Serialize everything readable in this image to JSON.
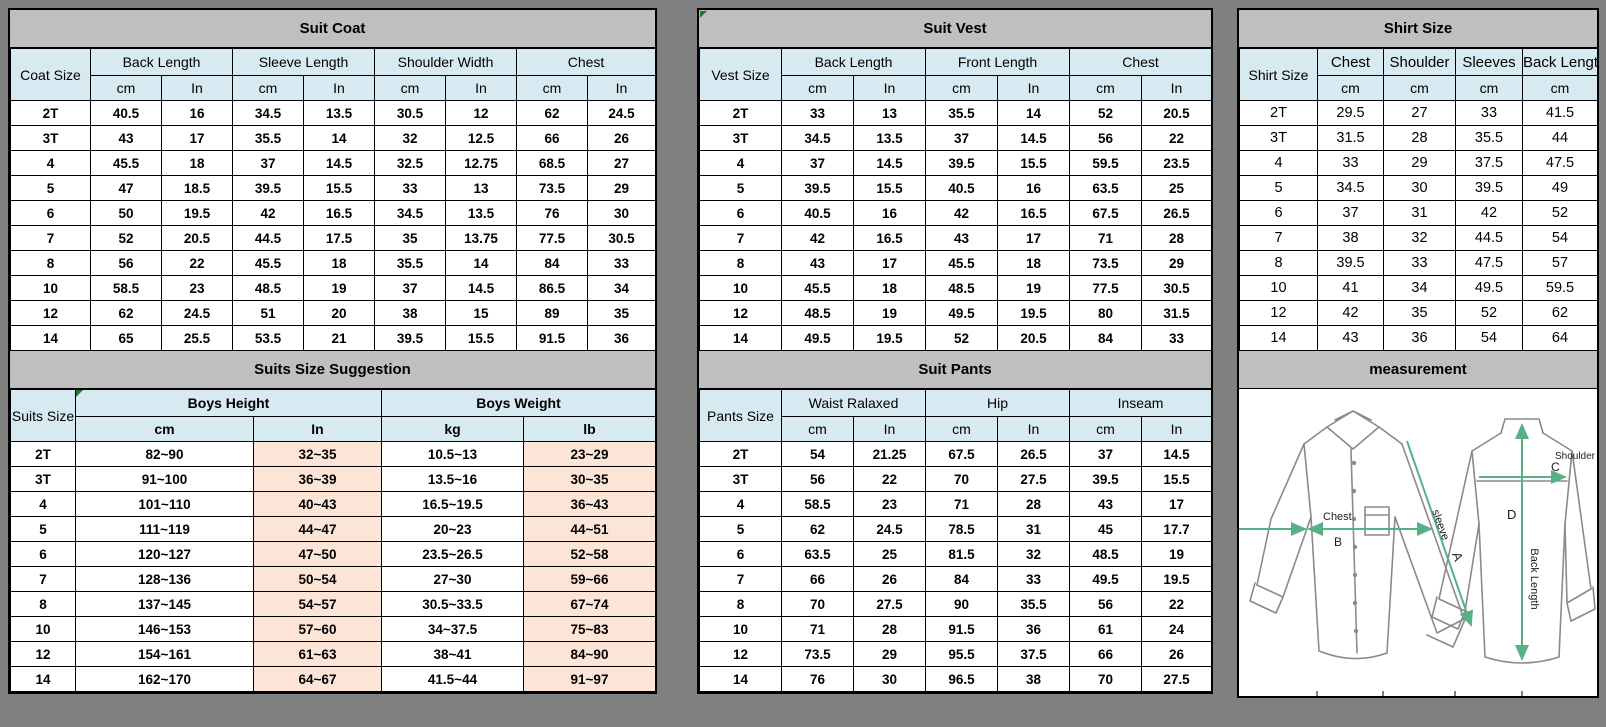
{
  "colors": {
    "page_bg": "#808080",
    "title_bg": "#BFBFBF",
    "header_bg": "#D8EAF1",
    "peach_bg": "#FCE4D6",
    "border": "#000000",
    "comment_marker_green": "#1F7A33",
    "measure_line_green": "#56B286"
  },
  "tables": {
    "suit_coat": {
      "title": "Suit Coat",
      "corner_label": "Coat Size",
      "groups": [
        {
          "label": "Back Length",
          "units": [
            "cm",
            "In"
          ]
        },
        {
          "label": "Sleeve Length",
          "units": [
            "cm",
            "In"
          ]
        },
        {
          "label": "Shoulder Width",
          "units": [
            "cm",
            "In"
          ]
        },
        {
          "label": "Chest",
          "units": [
            "cm",
            "In"
          ]
        }
      ],
      "rows": [
        {
          "size": "2T",
          "values": [
            "40.5",
            "16",
            "34.5",
            "13.5",
            "30.5",
            "12",
            "62",
            "24.5"
          ]
        },
        {
          "size": "3T",
          "values": [
            "43",
            "17",
            "35.5",
            "14",
            "32",
            "12.5",
            "66",
            "26"
          ]
        },
        {
          "size": "4",
          "values": [
            "45.5",
            "18",
            "37",
            "14.5",
            "32.5",
            "12.75",
            "68.5",
            "27"
          ]
        },
        {
          "size": "5",
          "values": [
            "47",
            "18.5",
            "39.5",
            "15.5",
            "33",
            "13",
            "73.5",
            "29"
          ]
        },
        {
          "size": "6",
          "values": [
            "50",
            "19.5",
            "42",
            "16.5",
            "34.5",
            "13.5",
            "76",
            "30"
          ]
        },
        {
          "size": "7",
          "values": [
            "52",
            "20.5",
            "44.5",
            "17.5",
            "35",
            "13.75",
            "77.5",
            "30.5"
          ]
        },
        {
          "size": "8",
          "values": [
            "56",
            "22",
            "45.5",
            "18",
            "35.5",
            "14",
            "84",
            "33"
          ]
        },
        {
          "size": "10",
          "values": [
            "58.5",
            "23",
            "48.5",
            "19",
            "37",
            "14.5",
            "86.5",
            "34"
          ]
        },
        {
          "size": "12",
          "values": [
            "62",
            "24.5",
            "51",
            "20",
            "38",
            "15",
            "89",
            "35"
          ]
        },
        {
          "size": "14",
          "values": [
            "65",
            "25.5",
            "53.5",
            "21",
            "39.5",
            "15.5",
            "91.5",
            "36"
          ]
        }
      ]
    },
    "suits_suggestion": {
      "title": "Suits Size Suggestion",
      "corner_label": "Suits Size",
      "groups": [
        {
          "label": "Boys Height",
          "units": [
            "cm",
            "In"
          ]
        },
        {
          "label": "Boys Weight",
          "units": [
            "kg",
            "lb"
          ]
        }
      ],
      "rows": [
        {
          "size": "2T",
          "values": [
            "82~90",
            "32~35",
            "10.5~13",
            "23~29"
          ]
        },
        {
          "size": "3T",
          "values": [
            "91~100",
            "36~39",
            "13.5~16",
            "30~35"
          ]
        },
        {
          "size": "4",
          "values": [
            "101~110",
            "40~43",
            "16.5~19.5",
            "36~43"
          ]
        },
        {
          "size": "5",
          "values": [
            "111~119",
            "44~47",
            "20~23",
            "44~51"
          ]
        },
        {
          "size": "6",
          "values": [
            "120~127",
            "47~50",
            "23.5~26.5",
            "52~58"
          ]
        },
        {
          "size": "7",
          "values": [
            "128~136",
            "50~54",
            "27~30",
            "59~66"
          ]
        },
        {
          "size": "8",
          "values": [
            "137~145",
            "54~57",
            "30.5~33.5",
            "67~74"
          ]
        },
        {
          "size": "10",
          "values": [
            "146~153",
            "57~60",
            "34~37.5",
            "75~83"
          ]
        },
        {
          "size": "12",
          "values": [
            "154~161",
            "61~63",
            "38~41",
            "84~90"
          ]
        },
        {
          "size": "14",
          "values": [
            "162~170",
            "64~67",
            "41.5~44",
            "91~97"
          ]
        }
      ]
    },
    "suit_vest": {
      "title": "Suit Vest",
      "corner_label": "Vest Size",
      "groups": [
        {
          "label": "Back Length",
          "units": [
            "cm",
            "In"
          ]
        },
        {
          "label": "Front Length",
          "units": [
            "cm",
            "In"
          ]
        },
        {
          "label": "Chest",
          "units": [
            "cm",
            "In"
          ]
        }
      ],
      "rows": [
        {
          "size": "2T",
          "values": [
            "33",
            "13",
            "35.5",
            "14",
            "52",
            "20.5"
          ]
        },
        {
          "size": "3T",
          "values": [
            "34.5",
            "13.5",
            "37",
            "14.5",
            "56",
            "22"
          ]
        },
        {
          "size": "4",
          "values": [
            "37",
            "14.5",
            "39.5",
            "15.5",
            "59.5",
            "23.5"
          ]
        },
        {
          "size": "5",
          "values": [
            "39.5",
            "15.5",
            "40.5",
            "16",
            "63.5",
            "25"
          ]
        },
        {
          "size": "6",
          "values": [
            "40.5",
            "16",
            "42",
            "16.5",
            "67.5",
            "26.5"
          ]
        },
        {
          "size": "7",
          "values": [
            "42",
            "16.5",
            "43",
            "17",
            "71",
            "28"
          ]
        },
        {
          "size": "8",
          "values": [
            "43",
            "17",
            "45.5",
            "18",
            "73.5",
            "29"
          ]
        },
        {
          "size": "10",
          "values": [
            "45.5",
            "18",
            "48.5",
            "19",
            "77.5",
            "30.5"
          ]
        },
        {
          "size": "12",
          "values": [
            "48.5",
            "19",
            "49.5",
            "19.5",
            "80",
            "31.5"
          ]
        },
        {
          "size": "14",
          "values": [
            "49.5",
            "19.5",
            "52",
            "20.5",
            "84",
            "33"
          ]
        }
      ]
    },
    "suit_pants": {
      "title": "Suit Pants",
      "corner_label": "Pants Size",
      "groups": [
        {
          "label": "Waist Ralaxed",
          "units": [
            "cm",
            "In"
          ]
        },
        {
          "label": "Hip",
          "units": [
            "cm",
            "In"
          ]
        },
        {
          "label": "Inseam",
          "units": [
            "cm",
            "In"
          ]
        }
      ],
      "rows": [
        {
          "size": "2T",
          "values": [
            "54",
            "21.25",
            "67.5",
            "26.5",
            "37",
            "14.5"
          ]
        },
        {
          "size": "3T",
          "values": [
            "56",
            "22",
            "70",
            "27.5",
            "39.5",
            "15.5"
          ]
        },
        {
          "size": "4",
          "values": [
            "58.5",
            "23",
            "71",
            "28",
            "43",
            "17"
          ]
        },
        {
          "size": "5",
          "values": [
            "62",
            "24.5",
            "78.5",
            "31",
            "45",
            "17.7"
          ]
        },
        {
          "size": "6",
          "values": [
            "63.5",
            "25",
            "81.5",
            "32",
            "48.5",
            "19"
          ]
        },
        {
          "size": "7",
          "values": [
            "66",
            "26",
            "84",
            "33",
            "49.5",
            "19.5"
          ]
        },
        {
          "size": "8",
          "values": [
            "70",
            "27.5",
            "90",
            "35.5",
            "56",
            "22"
          ]
        },
        {
          "size": "10",
          "values": [
            "71",
            "28",
            "91.5",
            "36",
            "61",
            "24"
          ]
        },
        {
          "size": "12",
          "values": [
            "73.5",
            "29",
            "95.5",
            "37.5",
            "66",
            "26"
          ]
        },
        {
          "size": "14",
          "values": [
            "76",
            "30",
            "96.5",
            "38",
            "70",
            "27.5"
          ]
        }
      ]
    },
    "shirt_size": {
      "title": "Shirt Size",
      "corner_label": "Shirt Size",
      "columns": [
        {
          "label": "Chest",
          "unit": "cm"
        },
        {
          "label": "Shoulder",
          "unit": "cm"
        },
        {
          "label": "Sleeves",
          "unit": "cm"
        },
        {
          "label": "Back Length",
          "unit": "cm"
        }
      ],
      "rows": [
        {
          "size": "2T",
          "values": [
            "29.5",
            "27",
            "33",
            "41.5"
          ]
        },
        {
          "size": "3T",
          "values": [
            "31.5",
            "28",
            "35.5",
            "44"
          ]
        },
        {
          "size": "4",
          "values": [
            "33",
            "29",
            "37.5",
            "47.5"
          ]
        },
        {
          "size": "5",
          "values": [
            "34.5",
            "30",
            "39.5",
            "49"
          ]
        },
        {
          "size": "6",
          "values": [
            "37",
            "31",
            "42",
            "52"
          ]
        },
        {
          "size": "7",
          "values": [
            "38",
            "32",
            "44.5",
            "54"
          ]
        },
        {
          "size": "8",
          "values": [
            "39.5",
            "33",
            "47.5",
            "57"
          ]
        },
        {
          "size": "10",
          "values": [
            "41",
            "34",
            "49.5",
            "59.5"
          ]
        },
        {
          "size": "12",
          "values": [
            "42",
            "35",
            "52",
            "62"
          ]
        },
        {
          "size": "14",
          "values": [
            "43",
            "36",
            "54",
            "64"
          ]
        }
      ]
    }
  },
  "measurement": {
    "title": "measurement",
    "labels": {
      "sleeve": "sleeve",
      "a": "A",
      "chest": "Chest",
      "b": "B",
      "shoulder": "Shoulder",
      "c": "C",
      "d": "D",
      "back_length": "Back Length"
    }
  }
}
